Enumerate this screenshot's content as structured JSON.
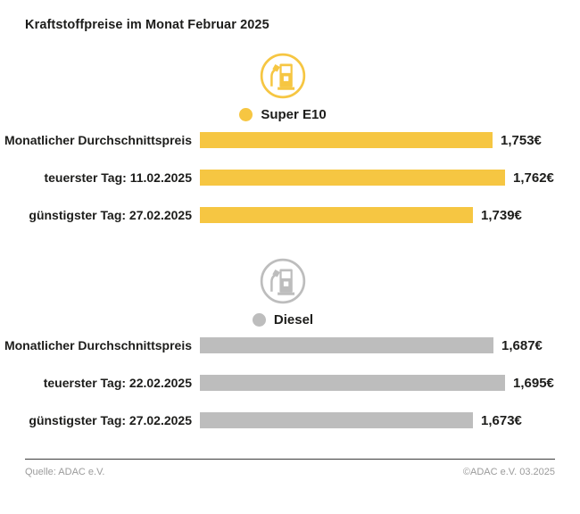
{
  "title": "Kraftstoffpreise im Monat Februar 2025",
  "colors": {
    "e10_yellow": "#F6C642",
    "diesel_gray": "#BDBDBD",
    "text_dark": "#1d1d1b",
    "footer_gray": "#9b9b9b",
    "footer_line": "#3d3d3d"
  },
  "chart_data": {
    "type": "bar",
    "orientation": "horizontal",
    "title": "Kraftstoffpreise im Monat Februar 2025",
    "grid": false,
    "legend_position": "above-each-section",
    "sections": [
      {
        "fuel": "Super E10",
        "icon": "fuel-pump-icon",
        "color": "#F6C642",
        "rows": [
          {
            "label": "Monatlicher Durchschnittspreis",
            "value": 1.753,
            "display": "1,753€"
          },
          {
            "label": "teuerster Tag: 11.02.2025",
            "value": 1.762,
            "display": "1,762€"
          },
          {
            "label": "günstigster Tag: 27.02.2025",
            "value": 1.739,
            "display": "1,739€"
          }
        ]
      },
      {
        "fuel": "Diesel",
        "icon": "fuel-pump-icon",
        "color": "#BDBDBD",
        "rows": [
          {
            "label": "Monatlicher Durchschnittspreis",
            "value": 1.687,
            "display": "1,687€"
          },
          {
            "label": "teuerster Tag: 22.02.2025",
            "value": 1.695,
            "display": "1,695€"
          },
          {
            "label": "günstigster Tag: 27.02.2025",
            "value": 1.673,
            "display": "1,673€"
          }
        ]
      }
    ]
  },
  "footer": {
    "source": "Quelle: ADAC e.V.",
    "copyright": "©ADAC e.V. 03.2025"
  }
}
